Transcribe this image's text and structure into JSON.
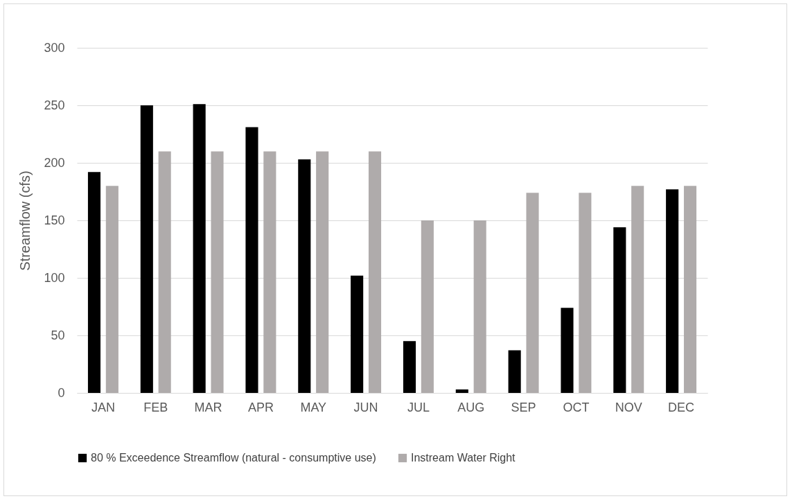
{
  "chart_data": {
    "type": "bar",
    "ylabel": "Streamflow (cfs)",
    "categories": [
      "JAN",
      "FEB",
      "MAR",
      "APR",
      "MAY",
      "JUN",
      "JUL",
      "AUG",
      "SEP",
      "OCT",
      "NOV",
      "DEC"
    ],
    "series": [
      {
        "name": "80 % Exceedence Streamflow (natural - consumptive use)",
        "color": "#000000",
        "values": [
          192,
          250,
          251,
          231,
          203,
          102,
          45,
          3,
          37,
          74,
          144,
          177
        ]
      },
      {
        "name": "Instream Water Right",
        "color": "#afabab",
        "values": [
          180,
          210,
          210,
          210,
          210,
          210,
          150,
          150,
          174,
          174,
          180,
          180
        ]
      }
    ],
    "ylim": [
      0,
      300
    ],
    "yticks": [
      0,
      50,
      100,
      150,
      200,
      250,
      300
    ],
    "grid": "y",
    "legend": "bottom"
  }
}
